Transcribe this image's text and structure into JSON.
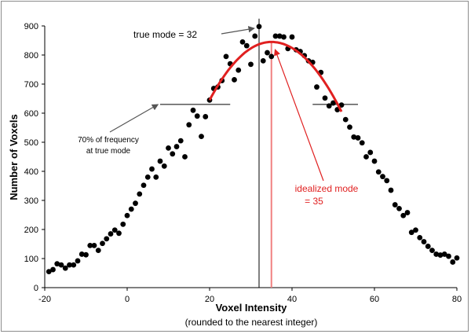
{
  "chart_data": {
    "type": "scatter",
    "xlabel": "Voxel Intensity",
    "xlabel_sub": "(rounded to the nearest integer)",
    "ylabel": "Number of Voxels",
    "xlim": [
      -20,
      80
    ],
    "ylim": [
      0,
      900
    ],
    "xticks": [
      -20,
      0,
      20,
      40,
      60,
      80
    ],
    "yticks": [
      0,
      100,
      200,
      300,
      400,
      500,
      600,
      700,
      800,
      900
    ],
    "grid": false,
    "colors": {
      "points": "#000000",
      "fit": "#e02020",
      "true_mode_line": "#000000",
      "idealized_mode_line": "#f08080"
    },
    "series": [
      {
        "values": [
          [
            -19,
            55
          ],
          [
            -18,
            62
          ],
          [
            -17,
            82
          ],
          [
            -16,
            78
          ],
          [
            -15,
            67
          ],
          [
            -14,
            78
          ],
          [
            -13,
            78
          ],
          [
            -12,
            92
          ],
          [
            -11,
            115
          ],
          [
            -10,
            113
          ],
          [
            -9,
            145
          ],
          [
            -8,
            145
          ],
          [
            -7,
            128
          ],
          [
            -6,
            152
          ],
          [
            -5,
            168
          ],
          [
            -4,
            185
          ],
          [
            -3,
            198
          ],
          [
            -2,
            187
          ],
          [
            -1,
            218
          ],
          [
            0,
            248
          ],
          [
            1,
            270
          ],
          [
            2,
            290
          ],
          [
            3,
            322
          ],
          [
            4,
            352
          ],
          [
            5,
            380
          ],
          [
            6,
            408
          ],
          [
            7,
            380
          ],
          [
            8,
            435
          ],
          [
            9,
            418
          ],
          [
            10,
            480
          ],
          [
            11,
            460
          ],
          [
            12,
            485
          ],
          [
            13,
            505
          ],
          [
            14,
            450
          ],
          [
            15,
            560
          ],
          [
            16,
            610
          ],
          [
            17,
            590
          ],
          [
            18,
            520
          ],
          [
            19,
            588
          ],
          [
            20,
            645
          ],
          [
            21,
            685
          ],
          [
            22,
            690
          ],
          [
            23,
            712
          ],
          [
            24,
            795
          ],
          [
            25,
            770
          ],
          [
            26,
            715
          ],
          [
            27,
            748
          ],
          [
            28,
            845
          ],
          [
            29,
            832
          ],
          [
            30,
            768
          ],
          [
            31,
            865
          ],
          [
            32,
            898
          ],
          [
            33,
            780
          ],
          [
            34,
            808
          ],
          [
            35,
            795
          ],
          [
            36,
            865
          ],
          [
            37,
            865
          ],
          [
            38,
            862
          ],
          [
            39,
            822
          ],
          [
            40,
            862
          ],
          [
            41,
            818
          ],
          [
            42,
            812
          ],
          [
            43,
            798
          ],
          [
            44,
            780
          ],
          [
            45,
            775
          ],
          [
            46,
            690
          ],
          [
            47,
            740
          ],
          [
            48,
            652
          ],
          [
            49,
            625
          ],
          [
            50,
            635
          ],
          [
            51,
            612
          ],
          [
            52,
            628
          ],
          [
            53,
            578
          ],
          [
            54,
            552
          ],
          [
            55,
            518
          ],
          [
            56,
            515
          ],
          [
            57,
            498
          ],
          [
            58,
            450
          ],
          [
            59,
            465
          ],
          [
            60,
            435
          ],
          [
            61,
            398
          ],
          [
            62,
            382
          ],
          [
            63,
            368
          ],
          [
            64,
            335
          ],
          [
            65,
            285
          ],
          [
            66,
            272
          ],
          [
            67,
            248
          ],
          [
            68,
            258
          ],
          [
            69,
            190
          ],
          [
            70,
            198
          ],
          [
            71,
            172
          ],
          [
            72,
            158
          ],
          [
            73,
            142
          ],
          [
            74,
            128
          ],
          [
            75,
            115
          ],
          [
            76,
            112
          ],
          [
            77,
            115
          ],
          [
            78,
            108
          ],
          [
            79,
            88
          ],
          [
            80,
            102
          ]
        ]
      }
    ],
    "fit_curve": {
      "type": "parabola",
      "vertex": [
        35,
        845
      ],
      "x_range": [
        20,
        52
      ],
      "endpoints": [
        [
          20,
          645
        ],
        [
          52,
          605
        ]
      ]
    },
    "vertical_lines": [
      {
        "x": 32,
        "y_top": 925,
        "label_ref": "true_mode"
      },
      {
        "x": 35,
        "y_top": 845,
        "label_ref": "idealized_mode"
      }
    ],
    "threshold_lines": [
      {
        "x_from": 8,
        "x_to": 25,
        "y": 630
      },
      {
        "x_from": 45,
        "x_to": 56,
        "y": 630
      }
    ],
    "annotations": {
      "true_mode": {
        "text": "true mode = 32",
        "text_at": [
          12,
          865
        ],
        "arrow_to": [
          32,
          900
        ]
      },
      "idealized_mode": {
        "lines": [
          "idealized mode",
          "= 35"
        ],
        "text_at": [
          40,
          360
        ],
        "arrow_to": [
          35.5,
          830
        ]
      },
      "seventy_percent": {
        "lines": [
          "70% of frequency",
          "at true mode"
        ],
        "text_at": [
          -3,
          495
        ],
        "arrow_to": [
          7.5,
          630
        ]
      }
    }
  }
}
